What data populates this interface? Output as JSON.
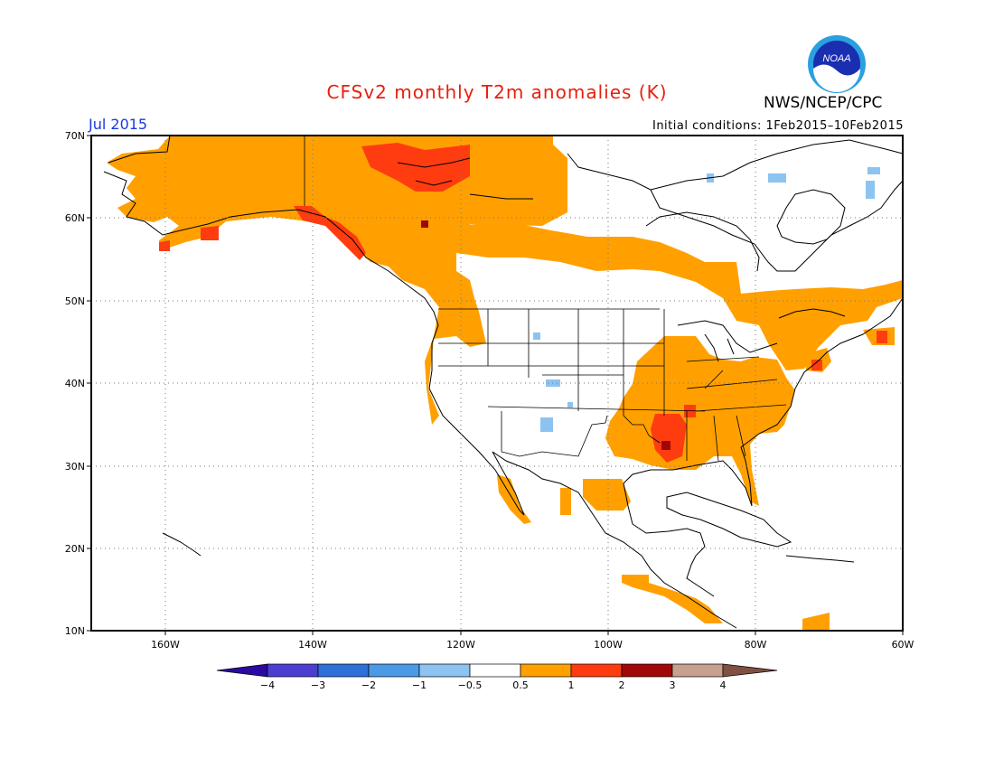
{
  "header": {
    "title": "CFSv2 monthly T2m anomalies (K)",
    "org": "NWS/NCEP/CPC",
    "logo_text": "NOAA",
    "month": "Jul 2015",
    "initial_conditions": "Initial conditions: 1Feb2015–10Feb2015"
  },
  "map": {
    "lat_labels": [
      "70N",
      "60N",
      "50N",
      "40N",
      "30N",
      "20N",
      "10N"
    ],
    "lon_labels": [
      "160W",
      "140W",
      "120W",
      "100W",
      "80W",
      "60W"
    ]
  },
  "colorbar": {
    "colors": [
      "#2a0aa0",
      "#4b3ed0",
      "#2e6fd8",
      "#4a9ae6",
      "#8cc3f0",
      "#ffffff",
      "#ffa000",
      "#ff3c10",
      "#a00808",
      "#c8a090",
      "#805040"
    ],
    "tick_labels": [
      "−4",
      "−3",
      "−2",
      "−1",
      "−0.5",
      "0.5",
      "1",
      "2",
      "3",
      "4"
    ]
  },
  "anomaly_colors": {
    "warm_0_5_1": "#ffa000",
    "warm_1_2": "#ff3c10",
    "warm_2_3": "#a00808",
    "cool_0_5_1": "#8cc3f0"
  }
}
